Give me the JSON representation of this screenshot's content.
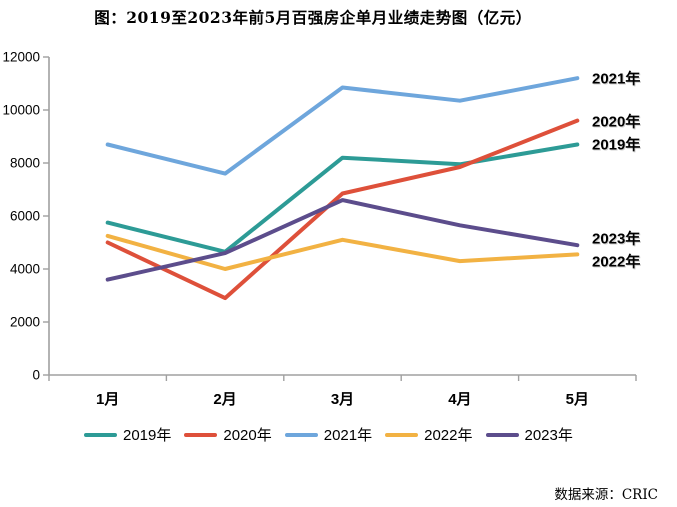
{
  "chart_data": {
    "type": "line",
    "title": "图：2019至2023年前5月百强房企单月业绩走势图（亿元）",
    "categories": [
      "1月",
      "2月",
      "3月",
      "4月",
      "5月"
    ],
    "series": [
      {
        "name": "2019年",
        "color": "#2D9B96",
        "values": [
          5750,
          4650,
          8200,
          7950,
          8700
        ]
      },
      {
        "name": "2020年",
        "color": "#DE503A",
        "values": [
          5000,
          2900,
          6850,
          7850,
          9600
        ]
      },
      {
        "name": "2021年",
        "color": "#6EA6DC",
        "values": [
          8700,
          7600,
          10850,
          10350,
          11200
        ]
      },
      {
        "name": "2022年",
        "color": "#F2B243",
        "values": [
          5250,
          4000,
          5100,
          4300,
          4550
        ]
      },
      {
        "name": "2023年",
        "color": "#5C4D8C",
        "values": [
          3600,
          4600,
          6600,
          5650,
          4900
        ]
      }
    ],
    "ylim": [
      0,
      12000
    ],
    "ytick_step": 2000,
    "ytick_labels": [
      "0",
      "2000",
      "4000",
      "6000",
      "8000",
      "10000",
      "12000"
    ],
    "grid": false,
    "legend_position": "bottom",
    "end_labels": [
      "2021年",
      "2020年",
      "2019年",
      "2023年",
      "2022年"
    ],
    "axis_color": "#A0A0A0",
    "source_note": "数据来源：CRIC"
  }
}
